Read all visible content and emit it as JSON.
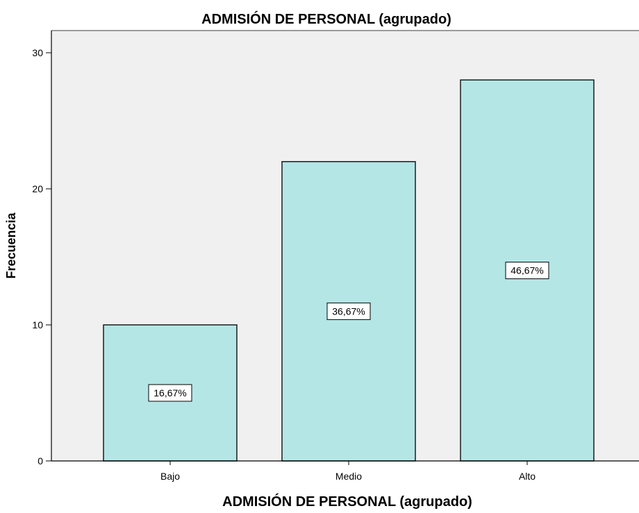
{
  "chart_data": {
    "type": "bar",
    "title": "ADMISIÓN DE PERSONAL (agrupado)",
    "xlabel": "ADMISIÓN DE PERSONAL (agrupado)",
    "ylabel": "Frecuencia",
    "categories": [
      "Bajo",
      "Medio",
      "Alto"
    ],
    "values": [
      10,
      22,
      28
    ],
    "data_labels": [
      "16,67%",
      "36,67%",
      "46,67%"
    ],
    "ylim": [
      0,
      32
    ],
    "yticks": [
      0,
      10,
      20,
      30
    ],
    "ytick_labels": [
      "0",
      "10",
      "20",
      "30"
    ],
    "grid": false,
    "legend": "none",
    "colors": {
      "plot_background": "#f0f0f0",
      "bar_fill": "#b4e6e6",
      "bar_stroke": "#1a1a1a",
      "label_background": "#ffffff",
      "text": "#000000"
    }
  }
}
